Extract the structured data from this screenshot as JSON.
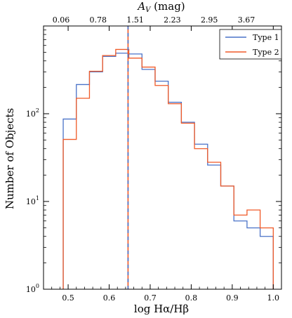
{
  "chart_data": {
    "type": "histogram",
    "xlabel": "log Hα/Hβ",
    "ylabel": "Number of Objects",
    "x2label": "A_V (mag)",
    "x2label_main": "A",
    "x2label_sub": "V",
    "x2label_unit": " (mag)",
    "xlim": [
      0.44,
      1.02
    ],
    "ylim": [
      1,
      1000
    ],
    "yscale": "log",
    "x_ticks": [
      "0.5",
      "0.6",
      "0.7",
      "0.8",
      "0.9",
      "1.0"
    ],
    "x_tick_values": [
      0.5,
      0.6,
      0.7,
      0.8,
      0.9,
      1.0
    ],
    "y_ticks": [
      {
        "value": 1,
        "base": "10",
        "exp": "0"
      },
      {
        "value": 10,
        "base": "10",
        "exp": "1"
      },
      {
        "value": 100,
        "base": "10",
        "exp": "2"
      }
    ],
    "x2_ticks": [
      "0.06",
      "0.78",
      "1.51",
      "2.23",
      "2.95",
      "3.67"
    ],
    "bin_edges": [
      0.488,
      0.52,
      0.552,
      0.584,
      0.616,
      0.648,
      0.68,
      0.712,
      0.744,
      0.776,
      0.808,
      0.84,
      0.872,
      0.904,
      0.936,
      0.968,
      1.0
    ],
    "series": [
      {
        "name": "Type 1",
        "color": "#4a72c8",
        "values": [
          87,
          215,
          300,
          450,
          490,
          480,
          320,
          235,
          135,
          80,
          45,
          26,
          15,
          6,
          5,
          4
        ]
      },
      {
        "name": "Type 2",
        "color": "#f05a28",
        "values": [
          51,
          150,
          305,
          460,
          540,
          430,
          340,
          210,
          130,
          78,
          40,
          28,
          15,
          7,
          8,
          5
        ]
      }
    ],
    "vline": {
      "x": 0.646,
      "colors": [
        "#f05a28",
        "#4a72c8"
      ]
    },
    "legend_position": "top-right",
    "grid": false
  }
}
